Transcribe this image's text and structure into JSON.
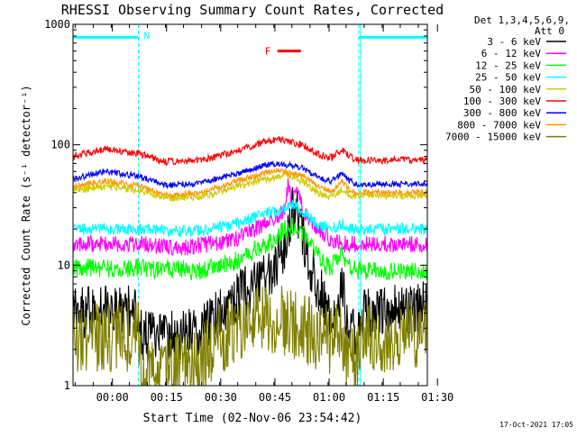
{
  "chart_data": {
    "type": "line",
    "title": "RHESSI Observing Summary Count Rates, Corrected",
    "xlabel": "Start Time (02-Nov-06 23:54:42)",
    "ylabel": "Corrected Count Rate (s⁻¹ detector⁻¹)",
    "y_scale": "log",
    "ylim": [
      1,
      1000
    ],
    "xlim_minutes": [
      -5.6,
      92.5
    ],
    "x_tick_labels": [
      "00:00",
      "00:15",
      "00:30",
      "00:45",
      "01:00",
      "01:15",
      "01:30"
    ],
    "x_tick_minutes": [
      5.3,
      20.3,
      35.3,
      50.3,
      65.3,
      80.3,
      95.3
    ],
    "y_tick_labels": [
      "1",
      "10",
      "100",
      "1000"
    ],
    "y_tick_values": [
      1,
      10,
      100,
      1000
    ],
    "legend_header": [
      "Det 1,3,4,5,6,9,",
      "Att 0"
    ],
    "legend_position": "right",
    "timestamp": "17-Oct-2021 17:05",
    "flags": [
      {
        "label": "N",
        "color": "#00ffff",
        "intervals": [
          [
            -5.6,
            12.5
          ],
          [
            73.5,
            92.5
          ]
        ],
        "y_value": 780
      },
      {
        "label": "F",
        "color": "#ff0000",
        "intervals": [
          [
            51.0,
            57.5
          ]
        ],
        "y_value": 600
      }
    ],
    "night_boundaries_minutes": [
      12.5,
      73.5,
      92.5
    ],
    "series": [
      {
        "name": "3 - 6 keV",
        "color": "#000000",
        "noise": 0.22,
        "points": [
          [
            -5.6,
            4.0
          ],
          [
            12.5,
            4.3
          ],
          [
            13.5,
            2.5
          ],
          [
            30,
            2.8
          ],
          [
            38,
            5.0
          ],
          [
            45,
            7.0
          ],
          [
            50,
            10.0
          ],
          [
            53,
            14.0
          ],
          [
            55,
            28.0
          ],
          [
            57,
            25.0
          ],
          [
            59,
            12.0
          ],
          [
            62,
            7.0
          ],
          [
            64,
            5.0
          ],
          [
            66,
            3.0
          ],
          [
            68,
            4.0
          ],
          [
            69,
            8.0
          ],
          [
            70,
            3.5
          ],
          [
            73,
            2.8
          ],
          [
            74,
            4.0
          ],
          [
            92.5,
            4.5
          ]
        ]
      },
      {
        "name": "6 - 12 keV",
        "color": "#ff00ff",
        "noise": 0.07,
        "points": [
          [
            -5.6,
            15.0
          ],
          [
            12.5,
            15.0
          ],
          [
            25,
            14.0
          ],
          [
            38,
            16.0
          ],
          [
            45,
            20.0
          ],
          [
            50,
            24.0
          ],
          [
            53,
            28.0
          ],
          [
            54,
            48.0
          ],
          [
            55,
            32.0
          ],
          [
            56.5,
            45.0
          ],
          [
            58,
            28.0
          ],
          [
            61,
            22.0
          ],
          [
            64,
            18.0
          ],
          [
            66,
            16.0
          ],
          [
            69,
            15.0
          ],
          [
            73,
            15.0
          ],
          [
            92.5,
            15.0
          ]
        ]
      },
      {
        "name": "12 - 25 keV",
        "color": "#00ff00",
        "noise": 0.08,
        "points": [
          [
            -5.6,
            9.5
          ],
          [
            12.5,
            9.5
          ],
          [
            30,
            9.0
          ],
          [
            40,
            11.0
          ],
          [
            46,
            14.0
          ],
          [
            50,
            16.0
          ],
          [
            53,
            20.0
          ],
          [
            56,
            21.0
          ],
          [
            58,
            18.0
          ],
          [
            61,
            14.0
          ],
          [
            64,
            10.0
          ],
          [
            66,
            9.5
          ],
          [
            69,
            14.0
          ],
          [
            70,
            10.0
          ],
          [
            73,
            9.0
          ],
          [
            92.5,
            9.0
          ]
        ]
      },
      {
        "name": "25 - 50 keV",
        "color": "#00ffff",
        "noise": 0.05,
        "points": [
          [
            -5.6,
            20.0
          ],
          [
            12.5,
            20.0
          ],
          [
            28,
            19.0
          ],
          [
            40,
            22.0
          ],
          [
            46,
            26.0
          ],
          [
            52,
            29.0
          ],
          [
            56,
            32.0
          ],
          [
            58,
            28.0
          ],
          [
            62,
            22.0
          ],
          [
            66,
            20.0
          ],
          [
            69,
            22.0
          ],
          [
            71,
            20.0
          ],
          [
            73,
            20.0
          ],
          [
            92.5,
            20.0
          ]
        ]
      },
      {
        "name": "50 - 100 keV",
        "color": "#cccc00",
        "noise": 0.03,
        "points": [
          [
            -5.6,
            42.0
          ],
          [
            3,
            45.0
          ],
          [
            12.5,
            42.0
          ],
          [
            20,
            36.0
          ],
          [
            30,
            37.0
          ],
          [
            40,
            45.0
          ],
          [
            48,
            52.0
          ],
          [
            54,
            56.0
          ],
          [
            58,
            50.0
          ],
          [
            62,
            40.0
          ],
          [
            66,
            37.0
          ],
          [
            69,
            43.0
          ],
          [
            71,
            38.0
          ],
          [
            73,
            38.0
          ],
          [
            92.5,
            38.0
          ]
        ]
      },
      {
        "name": "100 - 300 keV",
        "color": "#ff0000",
        "noise": 0.03,
        "points": [
          [
            -5.6,
            80.0
          ],
          [
            3,
            92.0
          ],
          [
            12.5,
            85.0
          ],
          [
            20,
            72.0
          ],
          [
            30,
            74.0
          ],
          [
            40,
            90.0
          ],
          [
            48,
            108.0
          ],
          [
            52,
            110.0
          ],
          [
            58,
            100.0
          ],
          [
            63,
            82.0
          ],
          [
            66,
            78.0
          ],
          [
            69,
            92.0
          ],
          [
            71,
            80.0
          ],
          [
            73,
            74.0
          ],
          [
            92.5,
            75.0
          ]
        ]
      },
      {
        "name": "300 - 800 keV",
        "color": "#0000ff",
        "noise": 0.025,
        "points": [
          [
            -5.6,
            52.0
          ],
          [
            3,
            60.0
          ],
          [
            12.5,
            55.0
          ],
          [
            20,
            46.0
          ],
          [
            30,
            48.0
          ],
          [
            40,
            58.0
          ],
          [
            48,
            68.0
          ],
          [
            52,
            70.0
          ],
          [
            58,
            64.0
          ],
          [
            63,
            52.0
          ],
          [
            66,
            50.0
          ],
          [
            69,
            58.0
          ],
          [
            71,
            50.0
          ],
          [
            73,
            47.0
          ],
          [
            92.5,
            47.0
          ]
        ]
      },
      {
        "name": "800 - 7000 keV",
        "color": "#ff9900",
        "noise": 0.025,
        "points": [
          [
            -5.6,
            45.0
          ],
          [
            3,
            50.0
          ],
          [
            12.5,
            46.0
          ],
          [
            20,
            38.0
          ],
          [
            30,
            40.0
          ],
          [
            40,
            50.0
          ],
          [
            48,
            59.0
          ],
          [
            52,
            61.0
          ],
          [
            58,
            55.0
          ],
          [
            63,
            44.0
          ],
          [
            66,
            41.0
          ],
          [
            69,
            49.0
          ],
          [
            71,
            42.0
          ],
          [
            73,
            40.0
          ],
          [
            92.5,
            40.0
          ]
        ]
      },
      {
        "name": "7000 - 15000 keV",
        "color": "#808000",
        "noise": 0.3,
        "points": [
          [
            -5.6,
            2.5
          ],
          [
            12.5,
            2.6
          ],
          [
            13.5,
            1.4
          ],
          [
            28,
            1.4
          ],
          [
            34,
            2.4
          ],
          [
            45,
            3.3
          ],
          [
            52,
            3.6
          ],
          [
            57,
            3.0
          ],
          [
            62,
            2.6
          ],
          [
            66,
            2.3
          ],
          [
            69,
            2.9
          ],
          [
            70,
            1.5
          ],
          [
            73,
            1.6
          ],
          [
            74,
            2.5
          ],
          [
            92.5,
            2.6
          ]
        ]
      }
    ]
  }
}
